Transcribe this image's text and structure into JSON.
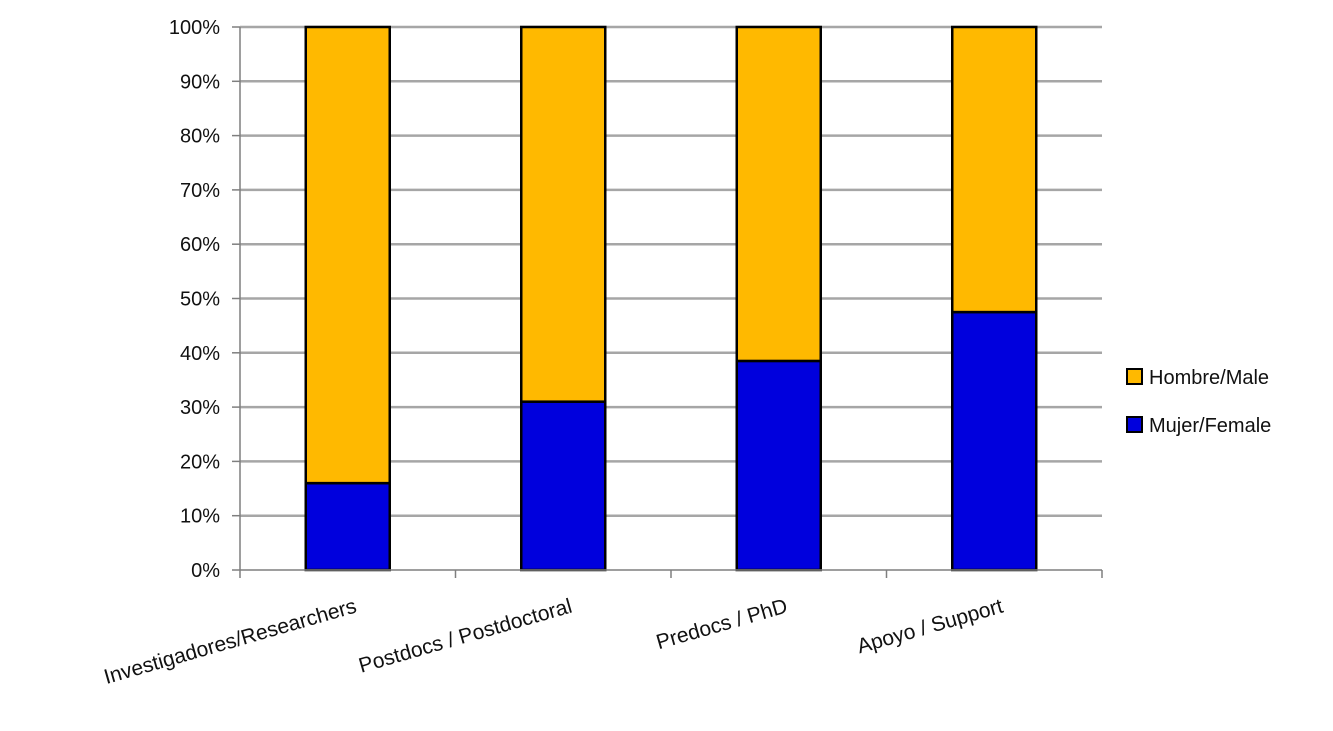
{
  "chart_data": {
    "type": "bar",
    "stacked": true,
    "normalized_percent": true,
    "title": "",
    "categories": [
      "Investigadores/Researchers",
      "Postdocs / Postdoctoral",
      "Predocs / PhD",
      "Apoyo / Support"
    ],
    "series": [
      {
        "name": "Mujer/Female",
        "color": "#0000dd",
        "values": [
          16,
          31,
          38.5,
          47.5
        ]
      },
      {
        "name": "Hombre/Male",
        "color": "#ffb900",
        "values": [
          84,
          69,
          61.5,
          52.5
        ]
      }
    ],
    "yticks": [
      "0%",
      "10%",
      "20%",
      "30%",
      "40%",
      "50%",
      "60%",
      "70%",
      "80%",
      "90%",
      "100%"
    ],
    "ylim": [
      0,
      100
    ],
    "grid": true,
    "legend": {
      "position": "right",
      "order": [
        "Hombre/Male",
        "Mujer/Female"
      ]
    },
    "colors": {
      "grid": "#a6a6a6",
      "axis": "#7f7f7f",
      "bar_outline": "#000000"
    }
  }
}
